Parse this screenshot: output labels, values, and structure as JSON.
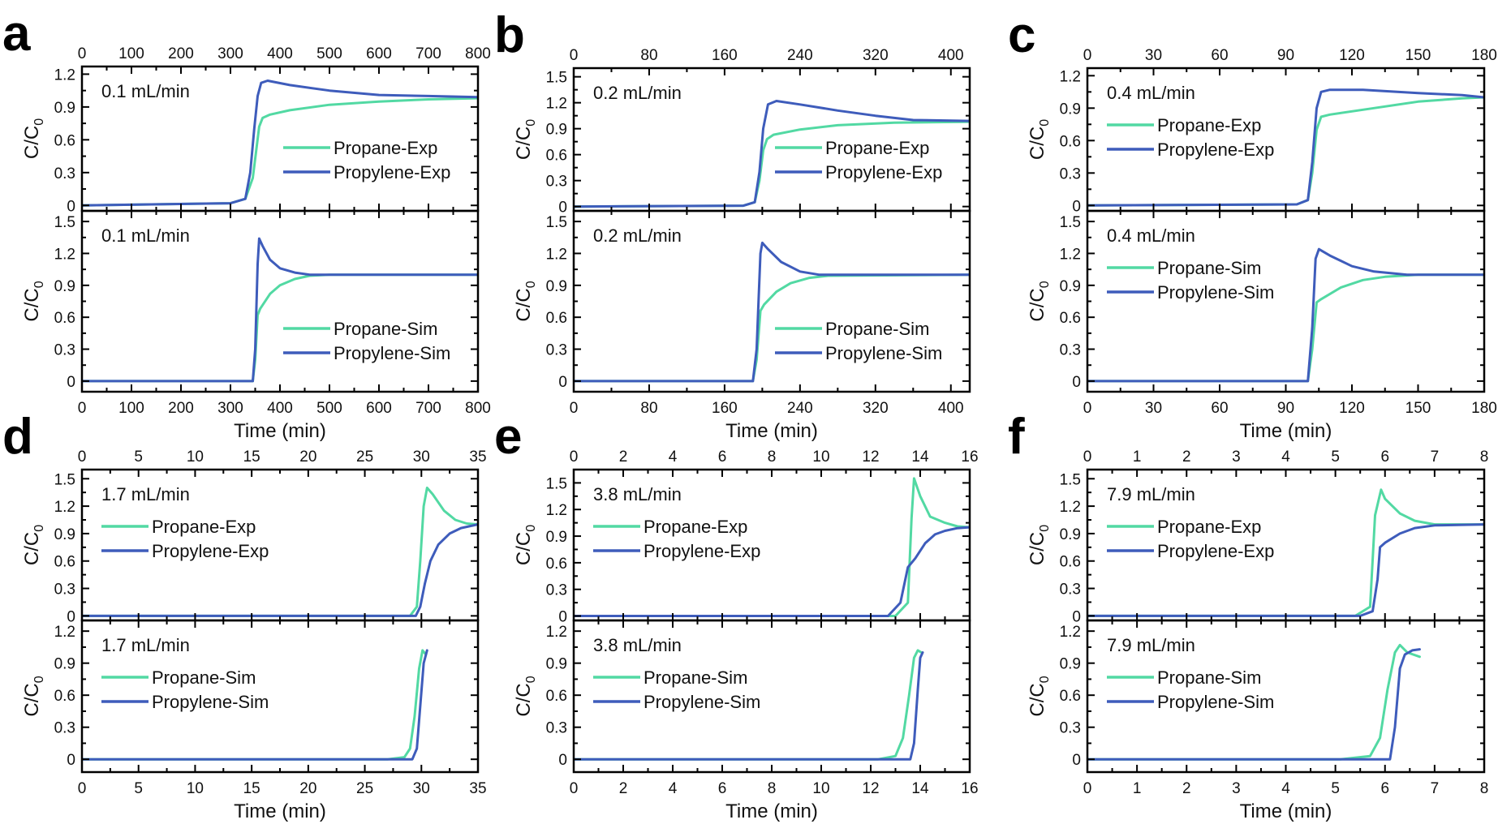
{
  "colors": {
    "propane": "#52d9a3",
    "propylene": "#3e5cbb"
  },
  "chart_data": [
    {
      "panel": "a",
      "type": "line",
      "flow_label": "0.1 mL/min",
      "xlabel": "Time (min)",
      "ylabel": "C/C0",
      "xlim": [
        0,
        800
      ],
      "xticks": [
        0,
        100,
        200,
        300,
        400,
        500,
        600,
        700,
        800
      ],
      "top": {
        "ylim": [
          -0.05,
          1.27
        ],
        "yticks": [
          0.0,
          0.3,
          0.6,
          0.9,
          1.2
        ],
        "legend_pos": "bottom-right",
        "series": [
          {
            "name": "Propane-Exp",
            "color_key": "propane",
            "x": [
              0,
              300,
              330,
              345,
              352,
              358,
              365,
              380,
              420,
              500,
              600,
              700,
              800
            ],
            "y": [
              0.0,
              0.02,
              0.06,
              0.25,
              0.5,
              0.72,
              0.8,
              0.83,
              0.87,
              0.92,
              0.95,
              0.97,
              0.98
            ]
          },
          {
            "name": "Propylene-Exp",
            "color_key": "propylene",
            "x": [
              0,
              300,
              330,
              340,
              348,
              355,
              362,
              375,
              420,
              500,
              600,
              700,
              800
            ],
            "y": [
              0.0,
              0.02,
              0.06,
              0.3,
              0.7,
              1.0,
              1.12,
              1.14,
              1.1,
              1.05,
              1.01,
              1.0,
              0.99
            ]
          }
        ]
      },
      "bottom": {
        "ylim": [
          -0.1,
          1.6
        ],
        "yticks": [
          0.0,
          0.3,
          0.6,
          0.9,
          1.2,
          1.5
        ],
        "legend_pos": "bottom-right",
        "series": [
          {
            "name": "Propane-Sim",
            "color_key": "propane",
            "x": [
              0,
              345,
              350,
              355,
              360,
              380,
              400,
              430,
              460,
              500,
              800
            ],
            "y": [
              0.0,
              0.0,
              0.2,
              0.62,
              0.68,
              0.82,
              0.9,
              0.96,
              0.99,
              1.0,
              1.0
            ]
          },
          {
            "name": "Propylene-Sim",
            "color_key": "propylene",
            "x": [
              0,
              345,
              350,
              355,
              358,
              365,
              380,
              400,
              430,
              460,
              500,
              800
            ],
            "y": [
              0.0,
              0.0,
              0.3,
              1.1,
              1.34,
              1.27,
              1.14,
              1.06,
              1.02,
              1.0,
              1.0,
              1.0
            ]
          }
        ]
      }
    },
    {
      "panel": "b",
      "type": "line",
      "flow_label": "0.2 mL/min",
      "xlabel": "Time (min)",
      "ylabel": "C/C0",
      "xlim": [
        0,
        420
      ],
      "xticks": [
        0,
        80,
        160,
        240,
        320,
        400
      ],
      "top": {
        "ylim": [
          -0.05,
          1.6
        ],
        "yticks": [
          0.0,
          0.3,
          0.6,
          0.9,
          1.2,
          1.5
        ],
        "legend_pos": "bottom-right",
        "series": [
          {
            "name": "Propane-Exp",
            "color_key": "propane",
            "x": [
              0,
              180,
              192,
              197,
              201,
              205,
              212,
              240,
              280,
              340,
              420
            ],
            "y": [
              0.0,
              0.01,
              0.05,
              0.3,
              0.65,
              0.78,
              0.83,
              0.89,
              0.94,
              0.97,
              0.98
            ]
          },
          {
            "name": "Propylene-Exp",
            "color_key": "propylene",
            "x": [
              0,
              180,
              192,
              197,
              201,
              206,
              215,
              240,
              280,
              320,
              360,
              420
            ],
            "y": [
              0.0,
              0.01,
              0.05,
              0.4,
              0.9,
              1.18,
              1.22,
              1.18,
              1.11,
              1.05,
              1.0,
              0.99
            ]
          }
        ]
      },
      "bottom": {
        "ylim": [
          -0.1,
          1.6
        ],
        "yticks": [
          0.0,
          0.3,
          0.6,
          0.9,
          1.2,
          1.5
        ],
        "legend_pos": "bottom-right",
        "series": [
          {
            "name": "Propane-Sim",
            "color_key": "propane",
            "x": [
              0,
              190,
              194,
              198,
              202,
              215,
              230,
              250,
              270,
              420
            ],
            "y": [
              0.0,
              0.0,
              0.2,
              0.66,
              0.72,
              0.84,
              0.92,
              0.97,
              0.99,
              1.0
            ]
          },
          {
            "name": "Propylene-Sim",
            "color_key": "propylene",
            "x": [
              0,
              190,
              194,
              198,
              200,
              206,
              220,
              240,
              260,
              420
            ],
            "y": [
              0.0,
              0.0,
              0.3,
              1.2,
              1.3,
              1.24,
              1.12,
              1.03,
              1.0,
              1.0
            ]
          }
        ]
      }
    },
    {
      "panel": "c",
      "type": "line",
      "flow_label": "0.4 mL/min",
      "xlabel": "Time (min)",
      "ylabel": "C/C0",
      "xlim": [
        0,
        180
      ],
      "xticks": [
        0,
        30,
        60,
        90,
        120,
        150,
        180
      ],
      "top": {
        "ylim": [
          -0.05,
          1.27
        ],
        "yticks": [
          0.0,
          0.3,
          0.6,
          0.9,
          1.2
        ],
        "legend_pos": "top-left",
        "series": [
          {
            "name": "Propane-Exp",
            "color_key": "propane",
            "x": [
              0,
              95,
              100,
              102,
              104,
              106,
              110,
              130,
              150,
              170,
              180
            ],
            "y": [
              0.0,
              0.01,
              0.05,
              0.3,
              0.7,
              0.82,
              0.84,
              0.9,
              0.96,
              0.99,
              1.0
            ]
          },
          {
            "name": "Propylene-Exp",
            "color_key": "propylene",
            "x": [
              0,
              95,
              100,
              102,
              104,
              106,
              110,
              125,
              150,
              170,
              180
            ],
            "y": [
              0.0,
              0.01,
              0.05,
              0.4,
              0.9,
              1.05,
              1.07,
              1.07,
              1.04,
              1.02,
              1.0
            ]
          }
        ]
      },
      "bottom": {
        "ylim": [
          -0.1,
          1.6
        ],
        "yticks": [
          0.0,
          0.3,
          0.6,
          0.9,
          1.2,
          1.5
        ],
        "legend_pos": "top-left",
        "series": [
          {
            "name": "Propane-Sim",
            "color_key": "propane",
            "x": [
              0,
              100,
              102,
              104,
              106,
              115,
              125,
              135,
              150,
              180
            ],
            "y": [
              0.0,
              0.0,
              0.3,
              0.74,
              0.77,
              0.88,
              0.95,
              0.98,
              1.0,
              1.0
            ]
          },
          {
            "name": "Propylene-Sim",
            "color_key": "propylene",
            "x": [
              0,
              100,
              102,
              103.5,
              105,
              110,
              120,
              130,
              145,
              180
            ],
            "y": [
              0.0,
              0.0,
              0.5,
              1.15,
              1.24,
              1.18,
              1.08,
              1.03,
              1.0,
              1.0
            ]
          }
        ]
      }
    },
    {
      "panel": "d",
      "type": "line",
      "flow_label": "1.7 mL/min",
      "xlabel": "Time (min)",
      "ylabel": "C/C0",
      "xlim": [
        0,
        35
      ],
      "xticks": [
        0,
        5,
        10,
        15,
        20,
        25,
        30,
        35
      ],
      "top": {
        "ylim": [
          -0.05,
          1.6
        ],
        "yticks": [
          0.0,
          0.3,
          0.6,
          0.9,
          1.2,
          1.5
        ],
        "legend_pos": "top-left",
        "series": [
          {
            "name": "Propane-Exp",
            "color_key": "propane",
            "x": [
              0,
              29,
              29.6,
              29.9,
              30.2,
              30.5,
              31,
              32,
              33,
              34,
              35
            ],
            "y": [
              0.0,
              0.0,
              0.1,
              0.6,
              1.2,
              1.4,
              1.33,
              1.15,
              1.05,
              1.01,
              1.0
            ]
          },
          {
            "name": "Propylene-Exp",
            "color_key": "propylene",
            "x": [
              0,
              29.5,
              29.9,
              30.3,
              30.8,
              31.5,
              32.5,
              33.5,
              35
            ],
            "y": [
              0.0,
              0.0,
              0.1,
              0.35,
              0.6,
              0.78,
              0.9,
              0.96,
              1.0
            ]
          }
        ]
      },
      "bottom": {
        "ylim": [
          -0.12,
          1.3
        ],
        "yticks": [
          0.0,
          0.3,
          0.6,
          0.9,
          1.2
        ],
        "legend_pos": "top-left",
        "series": [
          {
            "name": "Propane-Sim",
            "color_key": "propane",
            "x": [
              0,
              27,
              28.5,
              29,
              29.4,
              29.8,
              30.1,
              30.4
            ],
            "y": [
              0.0,
              0.0,
              0.02,
              0.1,
              0.4,
              0.85,
              1.02,
              0.98
            ]
          },
          {
            "name": "Propylene-Sim",
            "color_key": "propylene",
            "x": [
              0,
              29.2,
              29.6,
              29.9,
              30.2,
              30.5
            ],
            "y": [
              0.0,
              0.0,
              0.1,
              0.5,
              0.9,
              1.02
            ]
          }
        ]
      }
    },
    {
      "panel": "e",
      "type": "line",
      "flow_label": "3.8 mL/min",
      "xlabel": "Time (min)",
      "ylabel": "C/C0",
      "xlim": [
        0,
        16
      ],
      "xticks": [
        0,
        2,
        4,
        6,
        8,
        10,
        12,
        14,
        16
      ],
      "top": {
        "ylim": [
          -0.05,
          1.65
        ],
        "yticks": [
          0.0,
          0.3,
          0.6,
          0.9,
          1.2,
          1.5
        ],
        "legend_pos": "top-left",
        "series": [
          {
            "name": "Propane-Exp",
            "color_key": "propane",
            "x": [
              0,
              13.0,
              13.5,
              13.65,
              13.75,
              14.0,
              14.4,
              15,
              15.5,
              16
            ],
            "y": [
              0.0,
              0.0,
              0.15,
              1.1,
              1.55,
              1.35,
              1.12,
              1.05,
              1.01,
              1.0
            ]
          },
          {
            "name": "Propylene-Exp",
            "color_key": "propylene",
            "x": [
              0,
              12.7,
              13.2,
              13.5,
              13.8,
              14.2,
              14.6,
              15,
              15.5,
              16
            ],
            "y": [
              0.0,
              0.0,
              0.15,
              0.55,
              0.65,
              0.82,
              0.92,
              0.96,
              0.99,
              1.0
            ]
          }
        ]
      },
      "bottom": {
        "ylim": [
          -0.12,
          1.3
        ],
        "yticks": [
          0.0,
          0.3,
          0.6,
          0.9,
          1.2
        ],
        "legend_pos": "top-left",
        "series": [
          {
            "name": "Propane-Sim",
            "color_key": "propane",
            "x": [
              0,
              12.3,
              13.0,
              13.3,
              13.55,
              13.75,
              13.9,
              14.05
            ],
            "y": [
              0.0,
              0.0,
              0.03,
              0.2,
              0.6,
              0.95,
              1.02,
              1.0
            ]
          },
          {
            "name": "Propylene-Sim",
            "color_key": "propylene",
            "x": [
              0,
              13.6,
              13.75,
              13.9,
              14.0,
              14.1
            ],
            "y": [
              0.0,
              0.0,
              0.15,
              0.65,
              0.95,
              1.0
            ]
          }
        ]
      }
    },
    {
      "panel": "f",
      "type": "line",
      "flow_label": "7.9 mL/min",
      "xlabel": "Time (min)",
      "ylabel": "C/C0",
      "xlim": [
        0,
        8
      ],
      "xticks": [
        0,
        1,
        2,
        3,
        4,
        5,
        6,
        7,
        8
      ],
      "top": {
        "ylim": [
          -0.05,
          1.6
        ],
        "yticks": [
          0.0,
          0.3,
          0.6,
          0.9,
          1.2,
          1.5
        ],
        "legend_pos": "top-left",
        "series": [
          {
            "name": "Propane-Exp",
            "color_key": "propane",
            "x": [
              0,
              5.4,
              5.7,
              5.8,
              5.92,
              6.0,
              6.3,
              6.6,
              7.0,
              8
            ],
            "y": [
              0.0,
              0.0,
              0.1,
              1.1,
              1.38,
              1.28,
              1.12,
              1.04,
              1.0,
              1.0
            ]
          },
          {
            "name": "Propylene-Exp",
            "color_key": "propylene",
            "x": [
              0,
              5.5,
              5.75,
              5.85,
              5.9,
              6.0,
              6.3,
              6.6,
              7.0,
              8
            ],
            "y": [
              0.0,
              0.0,
              0.05,
              0.4,
              0.75,
              0.8,
              0.9,
              0.96,
              0.99,
              1.0
            ]
          }
        ]
      },
      "bottom": {
        "ylim": [
          -0.12,
          1.3
        ],
        "yticks": [
          0.0,
          0.3,
          0.6,
          0.9,
          1.2
        ],
        "legend_pos": "top-left",
        "series": [
          {
            "name": "Propane-Sim",
            "color_key": "propane",
            "x": [
              0,
              5.1,
              5.7,
              5.9,
              6.05,
              6.2,
              6.3,
              6.45,
              6.7
            ],
            "y": [
              0.0,
              0.0,
              0.03,
              0.2,
              0.65,
              1.0,
              1.07,
              1.0,
              0.96
            ]
          },
          {
            "name": "Propylene-Sim",
            "color_key": "propylene",
            "x": [
              0,
              6.1,
              6.2,
              6.3,
              6.4,
              6.55,
              6.7
            ],
            "y": [
              0.0,
              0.0,
              0.3,
              0.85,
              0.98,
              1.02,
              1.03
            ]
          }
        ]
      }
    }
  ]
}
